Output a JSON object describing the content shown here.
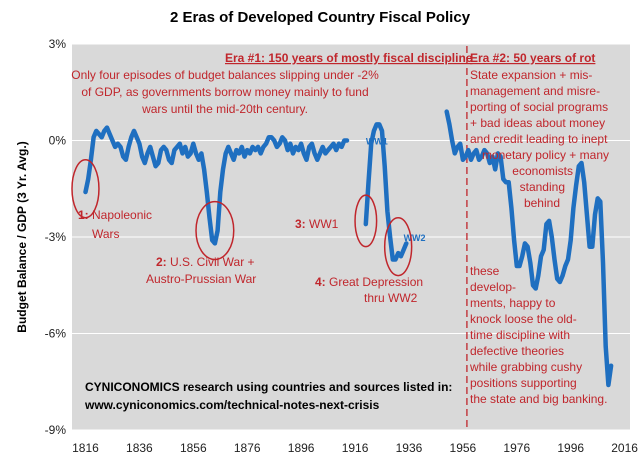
{
  "chart_data": {
    "type": "line",
    "title": "2 Eras of Developed Country Fiscal Policy",
    "ylabel": "Budget Balance / GDP (3 Yr. Avg.)",
    "xlabel": "",
    "xlim": [
      1811,
      2018
    ],
    "ylim": [
      -9,
      3
    ],
    "x_ticks": [
      "1816",
      "1836",
      "1856",
      "1876",
      "1896",
      "1916",
      "1936",
      "1956",
      "1976",
      "1996",
      "2016"
    ],
    "y_ticks": [
      "3%",
      "0%",
      "-3%",
      "-6%",
      "-9%"
    ],
    "series_color": "#1f6fc0",
    "series": [
      {
        "x": [
          1816,
          1817,
          1818,
          1819,
          1820,
          1821,
          1822,
          1823,
          1824,
          1825,
          1826,
          1827,
          1828,
          1829,
          1830,
          1831,
          1832,
          1833,
          1834,
          1835,
          1836,
          1837,
          1838,
          1839,
          1840,
          1841,
          1842,
          1843,
          1844,
          1845,
          1846,
          1847,
          1848,
          1849,
          1850,
          1851,
          1852,
          1853,
          1854,
          1855,
          1856,
          1857,
          1858,
          1859,
          1860,
          1861,
          1862,
          1863,
          1864,
          1865,
          1866,
          1867,
          1868,
          1869,
          1870,
          1871,
          1872,
          1873,
          1874,
          1875,
          1876,
          1877,
          1878,
          1879,
          1880,
          1881,
          1882,
          1883,
          1884,
          1885,
          1886,
          1887,
          1888,
          1889,
          1890,
          1891,
          1892,
          1893,
          1894,
          1895,
          1896,
          1897,
          1898,
          1899,
          1900,
          1901,
          1902,
          1903,
          1904,
          1905,
          1906,
          1907,
          1908,
          1909,
          1910,
          1911,
          1912,
          1913
        ],
        "y": [
          -1.6,
          -1.2,
          -0.6,
          0.1,
          0.3,
          0.2,
          0.1,
          0.3,
          0.4,
          0.2,
          0.0,
          -0.2,
          -0.1,
          -0.2,
          -0.5,
          -0.6,
          -0.2,
          0.1,
          0.3,
          0.1,
          -0.1,
          -0.5,
          -0.7,
          -0.4,
          -0.2,
          -0.5,
          -0.8,
          -0.7,
          -0.3,
          -0.2,
          -0.3,
          -0.6,
          -0.7,
          -0.3,
          -0.2,
          -0.1,
          -0.4,
          -0.2,
          -0.5,
          -0.4,
          -0.1,
          -0.4,
          -0.6,
          -0.4,
          -0.9,
          -1.6,
          -2.4,
          -3.1,
          -3.2,
          -2.8,
          -1.6,
          -0.9,
          -0.4,
          -0.2,
          -0.4,
          -0.6,
          -0.3,
          -0.4,
          -0.2,
          -0.5,
          -0.3,
          -0.4,
          -0.2,
          -0.3,
          -0.2,
          -0.4,
          -0.2,
          -0.1,
          0.1,
          0.1,
          0.0,
          -0.2,
          -0.1,
          0.1,
          0.0,
          -0.3,
          -0.1,
          -0.4,
          -0.2,
          -0.3,
          -0.1,
          -0.4,
          -0.6,
          -0.2,
          -0.1,
          -0.4,
          -0.6,
          -0.4,
          -0.2,
          -0.4,
          -0.3,
          -0.2,
          -0.1,
          -0.3,
          -0.1,
          -0.2,
          0.0,
          0.0
        ]
      },
      {
        "x": [
          1920,
          1921,
          1922,
          1923,
          1924,
          1925,
          1926,
          1927,
          1928,
          1929,
          1930,
          1931,
          1932,
          1933,
          1934,
          1935
        ],
        "y": [
          -2.6,
          -1.3,
          -0.1,
          0.3,
          0.5,
          0.5,
          0.3,
          -0.8,
          -2.2,
          -3.0,
          -3.7,
          -3.7,
          -3.5,
          -3.6,
          -3.4,
          -3.2
        ]
      },
      {
        "x": [
          1950,
          1951,
          1952,
          1953,
          1954,
          1955,
          1956,
          1957,
          1958,
          1959,
          1960,
          1961,
          1962,
          1963,
          1964,
          1965,
          1966,
          1967,
          1968,
          1969,
          1970,
          1971,
          1972,
          1973,
          1974,
          1975,
          1976,
          1977,
          1978,
          1979,
          1980,
          1981,
          1982,
          1983,
          1984,
          1985,
          1986,
          1987,
          1988,
          1989,
          1990,
          1991,
          1992,
          1993,
          1994,
          1995,
          1996,
          1997,
          1998,
          1999,
          2000,
          2001,
          2002,
          2003,
          2004,
          2005,
          2006,
          2007,
          2008,
          2009,
          2010,
          2011
        ],
        "y": [
          0.9,
          0.5,
          0.0,
          -0.4,
          -0.2,
          -0.1,
          -0.6,
          -0.5,
          -0.3,
          -0.6,
          -0.4,
          -0.3,
          -0.6,
          -0.5,
          -0.3,
          -0.4,
          -0.7,
          -0.5,
          -0.9,
          -0.4,
          -0.5,
          -1.2,
          -1.3,
          -1.3,
          -2.1,
          -3.1,
          -3.9,
          -3.9,
          -3.6,
          -3.2,
          -3.3,
          -3.8,
          -4.5,
          -4.6,
          -4.2,
          -3.6,
          -3.4,
          -2.6,
          -2.5,
          -3.0,
          -3.7,
          -4.3,
          -4.4,
          -4.2,
          -3.9,
          -3.7,
          -3.1,
          -2.1,
          -1.4,
          -0.8,
          -0.7,
          -1.3,
          -2.3,
          -3.3,
          -3.3,
          -2.3,
          -1.8,
          -1.9,
          -3.8,
          -6.4,
          -7.6,
          -7.0
        ]
      }
    ],
    "series_labels": [
      {
        "text": "WW1",
        "x": 1920,
        "y": 0.0
      },
      {
        "text": "WW2",
        "x": 1934,
        "y": -3.0
      }
    ],
    "era_divider_x": 1957.5,
    "circles": [
      {
        "x": 1816,
        "y": -1.5,
        "rx_years": 5,
        "ry": 0.9
      },
      {
        "x": 1864,
        "y": -2.8,
        "rx_years": 7,
        "ry": 0.9
      },
      {
        "x": 1920,
        "y": -2.5,
        "rx_years": 4,
        "ry": 0.8
      },
      {
        "x": 1932,
        "y": -3.3,
        "rx_years": 5,
        "ry": 0.9
      }
    ],
    "annotations": [
      {
        "text": "Era #1:  150 years of mostly fiscal discipline",
        "style": "redb",
        "underline": true
      },
      {
        "text": "Only four episodes of budget balances slipping under -2%",
        "style": "red"
      },
      {
        "text": "of GDP,  as governments borrow money mainly to fund",
        "style": "red"
      },
      {
        "text": "wars until the mid-20th century.",
        "style": "red"
      },
      {
        "text": "Era #2:  50 years of rot",
        "style": "redb",
        "underline": true
      },
      {
        "text": "State expansion + mis-",
        "style": "red"
      },
      {
        "text": "management and misre-",
        "style": "red"
      },
      {
        "text": "porting of social programs",
        "style": "red"
      },
      {
        "text": "+ bad ideas about money",
        "style": "red"
      },
      {
        "text": "and credit leading to inept",
        "style": "red"
      },
      {
        "text": "monetary policy + many",
        "style": "red"
      },
      {
        "text": "economists",
        "style": "red"
      },
      {
        "text": "standing",
        "style": "red"
      },
      {
        "text": "behind",
        "style": "red"
      },
      {
        "text": "these",
        "style": "red"
      },
      {
        "text": "develop-",
        "style": "red"
      },
      {
        "text": "ments, happy to",
        "style": "red"
      },
      {
        "text": "knock loose the old-",
        "style": "red"
      },
      {
        "text": "time discipline with",
        "style": "red"
      },
      {
        "text": "defective theories",
        "style": "red"
      },
      {
        "text": "while grabbing cushy",
        "style": "red"
      },
      {
        "text": "positions supporting",
        "style": "red"
      },
      {
        "text": "the state and big banking.",
        "style": "red"
      },
      {
        "text": "1:",
        "style": "redb"
      },
      {
        "text": " Napoleonic",
        "style": "red"
      },
      {
        "text": "Wars",
        "style": "red"
      },
      {
        "text": "2:",
        "style": "redb"
      },
      {
        "text": " U.S. Civil War +",
        "style": "red"
      },
      {
        "text": "Austro-Prussian  War",
        "style": "red"
      },
      {
        "text": "3:",
        "style": "redb"
      },
      {
        "text": " WW1",
        "style": "red"
      },
      {
        "text": "4:",
        "style": "redb"
      },
      {
        "text": " Great Depression",
        "style": "red"
      },
      {
        "text": "thru WW2",
        "style": "red"
      }
    ],
    "source_note": [
      "CYNICONOMICS research using countries and sources listed in:",
      "www.cyniconomics.com/technical-notes-next-crisis"
    ]
  }
}
